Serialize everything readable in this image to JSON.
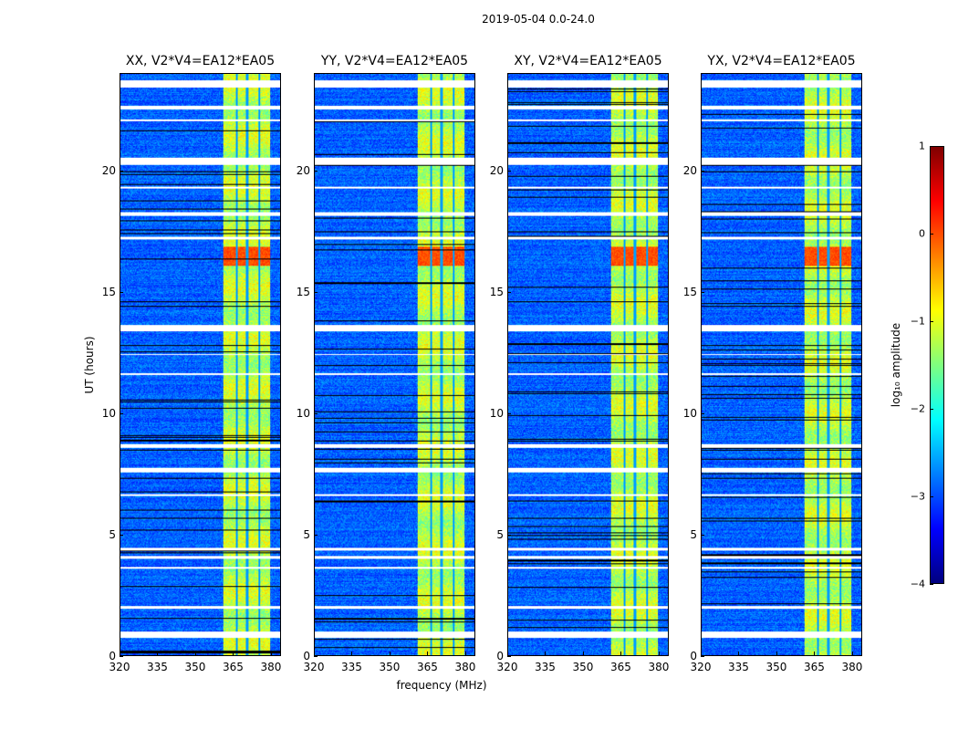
{
  "chart_data": {
    "type": "heatmap",
    "title": "2019-05-04 0.0-24.0",
    "xlabel": "frequency (MHz)",
    "ylabel": "UT (hours)",
    "xlim": [
      320,
      384
    ],
    "ylim": [
      0,
      24
    ],
    "xticks": [
      320,
      335,
      350,
      365,
      380
    ],
    "yticks": [
      0,
      5,
      10,
      15,
      20
    ],
    "panels": [
      {
        "title": "XX, V2*V4=EA12*EA05"
      },
      {
        "title": "YY, V2*V4=EA12*EA05"
      },
      {
        "title": "XY, V2*V4=EA12*EA05"
      },
      {
        "title": "YX, V2*V4=EA12*EA05"
      }
    ],
    "background_log_amplitude": -2.9,
    "rfi_band_mhz": [
      361,
      380
    ],
    "rfi_band_log_amplitude": -1.2,
    "rfi_gaps_mhz": [
      366.5,
      370.5,
      375.5
    ],
    "strong_rfi_hours": [
      16.1,
      16.9
    ],
    "strong_rfi_log_amplitude": 0.0,
    "flagged_hours": [
      [
        23.45,
        23.75
      ],
      [
        22.55,
        22.7
      ],
      [
        22.05,
        22.15
      ],
      [
        20.25,
        20.55
      ],
      [
        19.3,
        19.35
      ],
      [
        18.15,
        18.3
      ],
      [
        17.2,
        17.3
      ],
      [
        13.4,
        13.65
      ],
      [
        12.4,
        12.45
      ],
      [
        11.6,
        11.65
      ],
      [
        8.6,
        8.75
      ],
      [
        7.55,
        7.75
      ],
      [
        6.6,
        6.65
      ],
      [
        4.35,
        4.45
      ],
      [
        4.0,
        4.1
      ],
      [
        3.6,
        3.65
      ],
      [
        1.95,
        2.05
      ],
      [
        0.75,
        1.0
      ]
    ],
    "colorbar": {
      "label": "log₁₀ amplitude",
      "range": [
        -4,
        1
      ],
      "ticks": [
        "−4",
        "−3",
        "−2",
        "−1",
        "0",
        "1"
      ],
      "colormap": "jet"
    }
  }
}
